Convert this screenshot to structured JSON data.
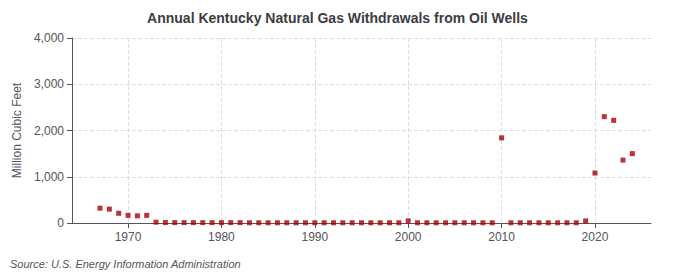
{
  "chart_data": {
    "type": "scatter",
    "title": "Annual Kentucky Natural Gas Withdrawals from Oil Wells",
    "ylabel": "Million Cubic Feet",
    "source": "Source: U.S. Energy Information Administration",
    "color": "#aa0000",
    "marker": "square",
    "grid": true,
    "xlim": [
      1964,
      2026
    ],
    "xticks": [
      1970,
      1980,
      1990,
      2000,
      2010,
      2020
    ],
    "ylim": [
      0,
      4000
    ],
    "yticks": [
      {
        "value": 0,
        "label": "0"
      },
      {
        "value": 1000,
        "label": "1,000"
      },
      {
        "value": 2000,
        "label": "2,000"
      },
      {
        "value": 3000,
        "label": "3,000"
      },
      {
        "value": 4000,
        "label": "4,000"
      }
    ],
    "x": [
      1967,
      1968,
      1969,
      1970,
      1971,
      1972,
      1973,
      1974,
      1975,
      1976,
      1977,
      1978,
      1979,
      1980,
      1981,
      1982,
      1983,
      1984,
      1985,
      1986,
      1987,
      1988,
      1989,
      1990,
      1991,
      1992,
      1993,
      1994,
      1995,
      1996,
      1997,
      1998,
      1999,
      2000,
      2001,
      2002,
      2003,
      2004,
      2005,
      2006,
      2007,
      2008,
      2009,
      2010,
      2011,
      2012,
      2013,
      2014,
      2015,
      2016,
      2017,
      2018,
      2019,
      2020,
      2021,
      2022,
      2023,
      2024
    ],
    "values": [
      320,
      300,
      210,
      165,
      155,
      165,
      18,
      10,
      8,
      8,
      8,
      8,
      8,
      8,
      8,
      8,
      5,
      5,
      5,
      5,
      5,
      5,
      5,
      5,
      5,
      5,
      5,
      5,
      5,
      5,
      5,
      5,
      5,
      45,
      5,
      5,
      5,
      5,
      5,
      5,
      5,
      5,
      5,
      1840,
      5,
      5,
      5,
      5,
      5,
      5,
      5,
      5,
      45,
      1080,
      2300,
      2220,
      1360,
      1500
    ]
  }
}
